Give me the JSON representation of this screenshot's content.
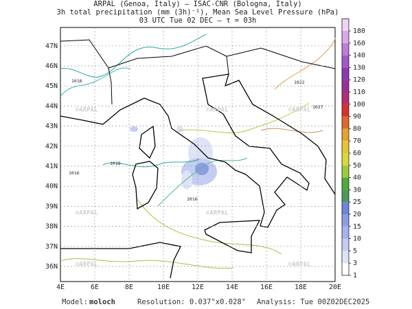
{
  "header": {
    "lines": [
      "ARPAL (Genoa, Italy)  —  ISAC-CNR (Bologna, Italy)",
      "3h total precipitation (mm (3h)⁻¹), Mean Sea Level Pressure (hPa)",
      "03 UTC Tue 02 DEC  –  τ = 03h"
    ]
  },
  "map": {
    "lon_labels": [
      "4E",
      "6E",
      "8E",
      "10E",
      "12E",
      "14E",
      "16E",
      "18E",
      "20E"
    ],
    "lat_labels": [
      "36N",
      "37N",
      "38N",
      "39N",
      "40N",
      "41N",
      "42N",
      "43N",
      "44N",
      "45N",
      "46N",
      "47N"
    ],
    "watermark": "©ARPAL",
    "contour_labels": [
      "1016",
      "1018",
      "1022",
      "1027"
    ]
  },
  "colorbar": [
    {
      "label": "1",
      "color": "#ffffff"
    },
    {
      "label": "3",
      "color": "#dfe3f7"
    },
    {
      "label": "5",
      "color": "#c4ccf1"
    },
    {
      "label": "10",
      "color": "#a6b3ea"
    },
    {
      "label": "15",
      "color": "#8c9de4"
    },
    {
      "label": "20",
      "color": "#6f84dc"
    },
    {
      "label": "25",
      "color": "#4c9a5a"
    },
    {
      "label": "30",
      "color": "#4faa3c"
    },
    {
      "label": "40",
      "color": "#9ccc3c"
    },
    {
      "label": "50",
      "color": "#d8d83a"
    },
    {
      "label": "60",
      "color": "#e8c530"
    },
    {
      "label": "70",
      "color": "#e8a030"
    },
    {
      "label": "80",
      "color": "#e06a2a"
    },
    {
      "label": "90",
      "color": "#d83030"
    },
    {
      "label": "100",
      "color": "#b03070"
    },
    {
      "label": "110",
      "color": "#98309a"
    },
    {
      "label": "120",
      "color": "#8a3ab0"
    },
    {
      "label": "130",
      "color": "#a25ac8"
    },
    {
      "label": "140",
      "color": "#c07ad8"
    },
    {
      "label": "160",
      "color": "#daa8e8"
    },
    {
      "label": "180",
      "color": "#eed4f4"
    }
  ],
  "footer": {
    "model_label": "Model:",
    "model": "moloch",
    "resolution": "Resolution: 0.037°x0.028°",
    "analysis": "Analysis: Tue 00Z02DEC2025"
  }
}
